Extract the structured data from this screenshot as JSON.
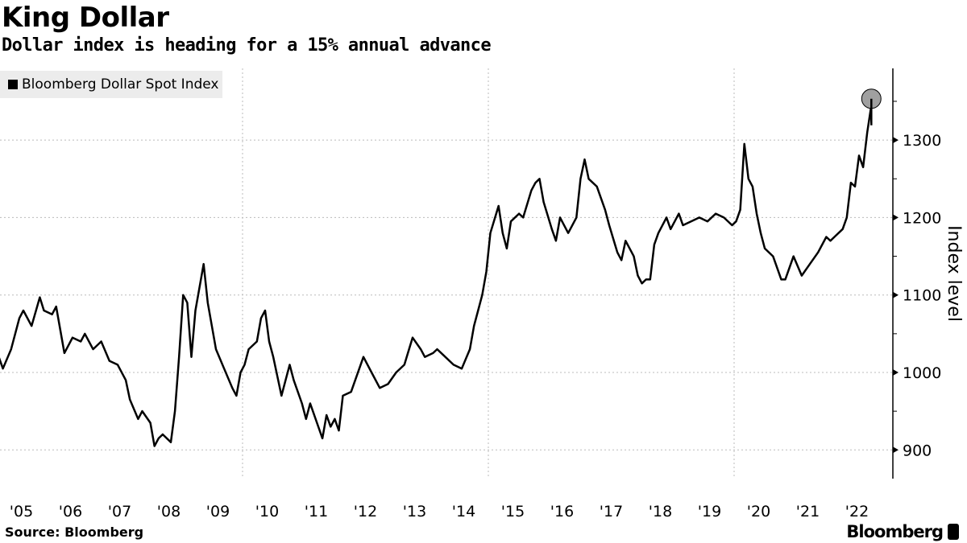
{
  "header": {
    "title": "King Dollar",
    "subtitle": "Dollar index is heading for a 15% annual advance"
  },
  "footer": {
    "source": "Source: Bloomberg",
    "logo_text": "Bloomberg"
  },
  "chart_data": {
    "type": "line",
    "ylabel": "Index level",
    "ylim": [
      860,
      1390
    ],
    "yticks": [
      900,
      1000,
      1100,
      1200,
      1300
    ],
    "xlim": [
      "2005-01",
      "2022-12"
    ],
    "xtick_labels": [
      "'05",
      "'06",
      "'07",
      "'08",
      "'09",
      "'10",
      "'11",
      "'12",
      "'13",
      "'14",
      "'15",
      "'16",
      "'17",
      "'18",
      "'19",
      "'20",
      "'21",
      "'22"
    ],
    "grid": true,
    "legend_position": "top-left",
    "y_axis_side": "right",
    "line_color": "#000000",
    "end_marker_color": "#a0a0a0",
    "series": [
      {
        "name": "Bloomberg Dollar Spot Index",
        "points": [
          [
            "2005-01",
            1020
          ],
          [
            "2005-02",
            1005
          ],
          [
            "2005-04",
            1030
          ],
          [
            "2005-06",
            1070
          ],
          [
            "2005-07",
            1080
          ],
          [
            "2005-09",
            1060
          ],
          [
            "2005-11",
            1097
          ],
          [
            "2005-12",
            1080
          ],
          [
            "2006-02",
            1075
          ],
          [
            "2006-03",
            1085
          ],
          [
            "2006-05",
            1025
          ],
          [
            "2006-07",
            1045
          ],
          [
            "2006-09",
            1040
          ],
          [
            "2006-10",
            1050
          ],
          [
            "2006-12",
            1030
          ],
          [
            "2007-02",
            1040
          ],
          [
            "2007-04",
            1015
          ],
          [
            "2007-06",
            1010
          ],
          [
            "2007-08",
            990
          ],
          [
            "2007-09",
            965
          ],
          [
            "2007-11",
            940
          ],
          [
            "2007-12",
            950
          ],
          [
            "2008-02",
            935
          ],
          [
            "2008-03",
            905
          ],
          [
            "2008-04",
            915
          ],
          [
            "2008-05",
            920
          ],
          [
            "2008-07",
            910
          ],
          [
            "2008-08",
            950
          ],
          [
            "2008-09",
            1020
          ],
          [
            "2008-10",
            1100
          ],
          [
            "2008-11",
            1090
          ],
          [
            "2008-12",
            1020
          ],
          [
            "2009-01",
            1080
          ],
          [
            "2009-03",
            1140
          ],
          [
            "2009-04",
            1090
          ],
          [
            "2009-05",
            1060
          ],
          [
            "2009-06",
            1030
          ],
          [
            "2009-08",
            1005
          ],
          [
            "2009-10",
            980
          ],
          [
            "2009-11",
            970
          ],
          [
            "2009-12",
            1000
          ],
          [
            "2010-01",
            1010
          ],
          [
            "2010-02",
            1030
          ],
          [
            "2010-04",
            1040
          ],
          [
            "2010-05",
            1070
          ],
          [
            "2010-06",
            1080
          ],
          [
            "2010-07",
            1040
          ],
          [
            "2010-08",
            1020
          ],
          [
            "2010-10",
            970
          ],
          [
            "2010-11",
            990
          ],
          [
            "2010-12",
            1010
          ],
          [
            "2011-01",
            990
          ],
          [
            "2011-03",
            960
          ],
          [
            "2011-04",
            940
          ],
          [
            "2011-05",
            960
          ],
          [
            "2011-07",
            930
          ],
          [
            "2011-08",
            915
          ],
          [
            "2011-09",
            945
          ],
          [
            "2011-10",
            930
          ],
          [
            "2011-11",
            940
          ],
          [
            "2011-12",
            925
          ],
          [
            "2012-01",
            970
          ],
          [
            "2012-03",
            975
          ],
          [
            "2012-06",
            1020
          ],
          [
            "2012-08",
            1000
          ],
          [
            "2012-10",
            980
          ],
          [
            "2012-12",
            985
          ],
          [
            "2013-02",
            1000
          ],
          [
            "2013-04",
            1010
          ],
          [
            "2013-06",
            1045
          ],
          [
            "2013-08",
            1030
          ],
          [
            "2013-09",
            1020
          ],
          [
            "2013-11",
            1025
          ],
          [
            "2013-12",
            1030
          ],
          [
            "2014-02",
            1020
          ],
          [
            "2014-04",
            1010
          ],
          [
            "2014-06",
            1005
          ],
          [
            "2014-08",
            1030
          ],
          [
            "2014-09",
            1060
          ],
          [
            "2014-10",
            1080
          ],
          [
            "2014-11",
            1100
          ],
          [
            "2014-12",
            1130
          ],
          [
            "2015-01",
            1180
          ],
          [
            "2015-03",
            1215
          ],
          [
            "2015-04",
            1180
          ],
          [
            "2015-05",
            1160
          ],
          [
            "2015-06",
            1195
          ],
          [
            "2015-08",
            1205
          ],
          [
            "2015-09",
            1200
          ],
          [
            "2015-11",
            1235
          ],
          [
            "2015-12",
            1245
          ],
          [
            "2016-01",
            1250
          ],
          [
            "2016-02",
            1220
          ],
          [
            "2016-04",
            1185
          ],
          [
            "2016-05",
            1170
          ],
          [
            "2016-06",
            1200
          ],
          [
            "2016-08",
            1180
          ],
          [
            "2016-10",
            1200
          ],
          [
            "2016-11",
            1250
          ],
          [
            "2016-12",
            1275
          ],
          [
            "2017-01",
            1250
          ],
          [
            "2017-03",
            1240
          ],
          [
            "2017-05",
            1210
          ],
          [
            "2017-06",
            1190
          ],
          [
            "2017-08",
            1155
          ],
          [
            "2017-09",
            1145
          ],
          [
            "2017-10",
            1170
          ],
          [
            "2017-12",
            1150
          ],
          [
            "2018-01",
            1125
          ],
          [
            "2018-02",
            1115
          ],
          [
            "2018-03",
            1120
          ],
          [
            "2018-04",
            1120
          ],
          [
            "2018-05",
            1165
          ],
          [
            "2018-06",
            1180
          ],
          [
            "2018-08",
            1200
          ],
          [
            "2018-09",
            1185
          ],
          [
            "2018-11",
            1205
          ],
          [
            "2018-12",
            1190
          ],
          [
            "2019-02",
            1195
          ],
          [
            "2019-04",
            1200
          ],
          [
            "2019-06",
            1195
          ],
          [
            "2019-08",
            1205
          ],
          [
            "2019-10",
            1200
          ],
          [
            "2019-12",
            1190
          ],
          [
            "2020-01",
            1195
          ],
          [
            "2020-02",
            1210
          ],
          [
            "2020-03",
            1295
          ],
          [
            "2020-04",
            1250
          ],
          [
            "2020-05",
            1240
          ],
          [
            "2020-06",
            1205
          ],
          [
            "2020-07",
            1180
          ],
          [
            "2020-08",
            1160
          ],
          [
            "2020-10",
            1150
          ],
          [
            "2020-12",
            1120
          ],
          [
            "2021-01",
            1120
          ],
          [
            "2021-03",
            1150
          ],
          [
            "2021-05",
            1125
          ],
          [
            "2021-07",
            1140
          ],
          [
            "2021-09",
            1155
          ],
          [
            "2021-11",
            1175
          ],
          [
            "2021-12",
            1170
          ],
          [
            "2022-01",
            1175
          ],
          [
            "2022-03",
            1185
          ],
          [
            "2022-04",
            1200
          ],
          [
            "2022-05",
            1245
          ],
          [
            "2022-06",
            1240
          ],
          [
            "2022-07",
            1280
          ],
          [
            "2022-08",
            1265
          ],
          [
            "2022-09",
            1310
          ],
          [
            "2022-10",
            1345
          ]
        ]
      }
    ]
  }
}
